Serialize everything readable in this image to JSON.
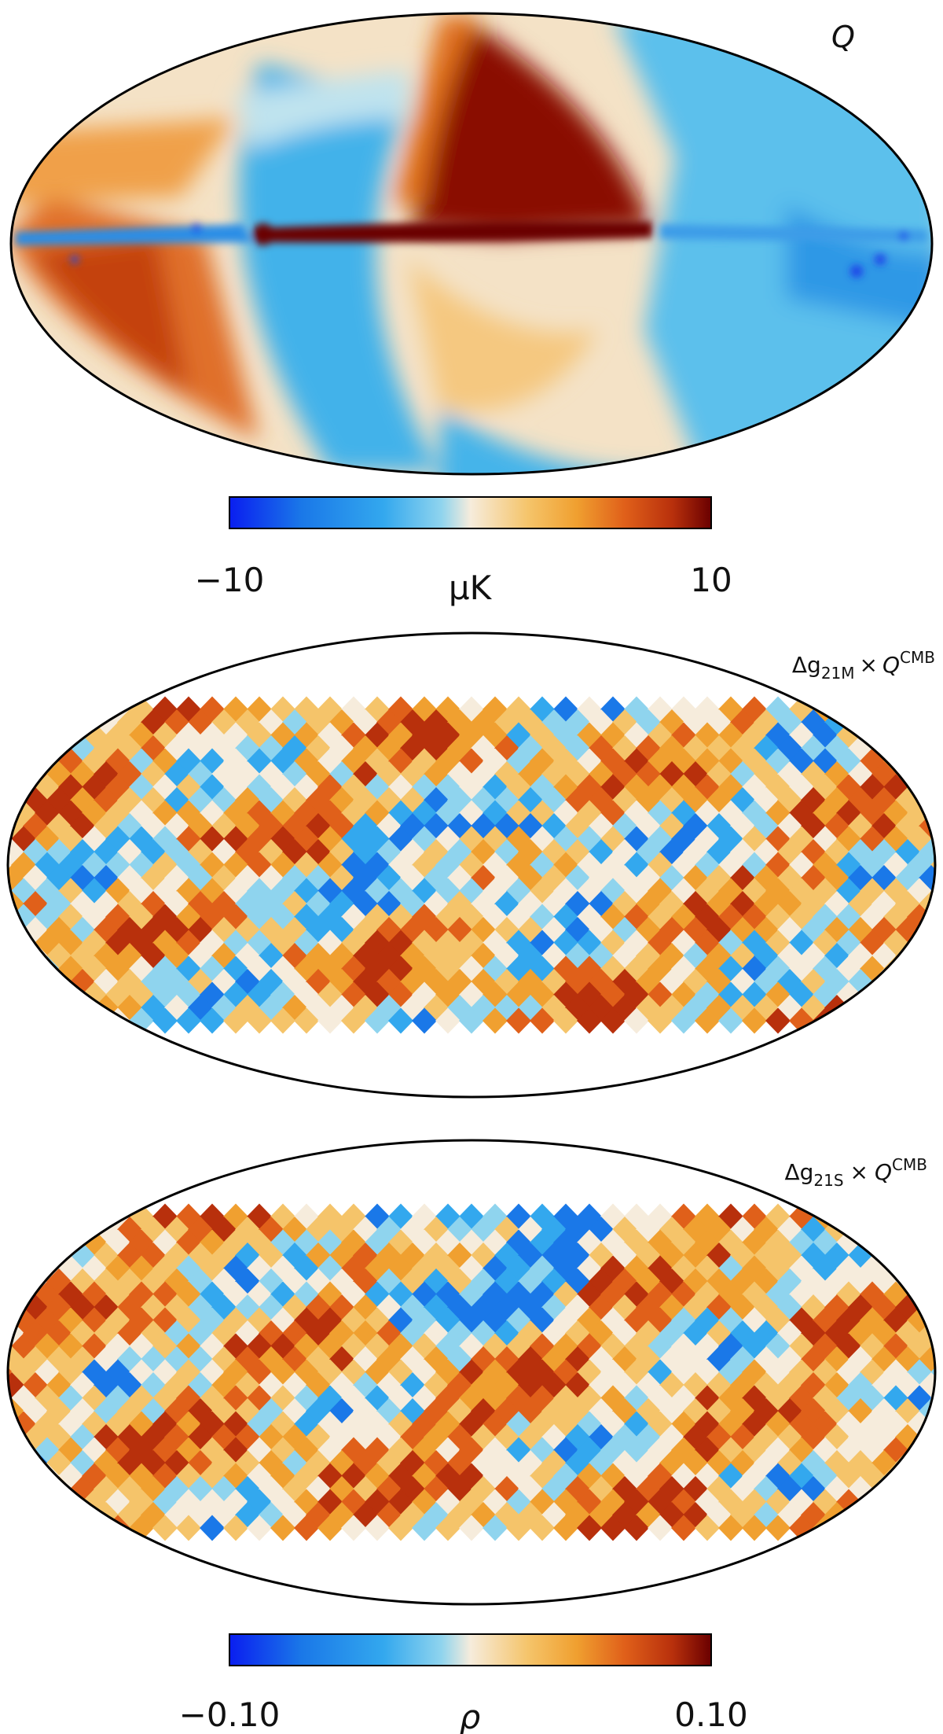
{
  "figure": {
    "panels": [
      {
        "id": "q-map",
        "label": "Q",
        "kind": "smooth-sky-map"
      },
      {
        "id": "corr-21m",
        "label_prefix": "Δg",
        "label_sub": "21M",
        "label_times": "×",
        "label_q": "Q",
        "label_sup": "CMB",
        "kind": "pixel-correlation-map"
      },
      {
        "id": "corr-21s",
        "label_prefix": "Δg",
        "label_sub": "21S",
        "label_times": "×",
        "label_q": "Q",
        "label_sup": "CMB",
        "kind": "pixel-correlation-map"
      }
    ],
    "colorbar_top": {
      "min_label": "−10",
      "max_label": "10",
      "unit_label": "μK",
      "min": -10,
      "max": 10
    },
    "colorbar_bottom": {
      "min_label": "−0.10",
      "max_label": "0.10",
      "unit_label": "ρ",
      "min": -0.1,
      "max": 0.1
    },
    "colormap": [
      "#0a1ef0",
      "#1a78e8",
      "#33a8ee",
      "#8fd4ee",
      "#f6ecdc",
      "#f5c46a",
      "#f0a030",
      "#e0601a",
      "#b8300c",
      "#6a0000"
    ]
  }
}
